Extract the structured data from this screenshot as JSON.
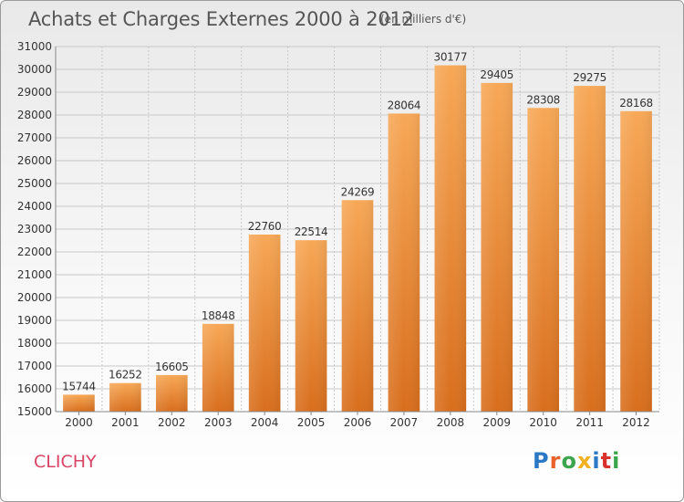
{
  "header": {
    "title": "Achats et Charges Externes 2000 à 2012",
    "unit": "(en milliers d'€)"
  },
  "footer": {
    "city": "CLICHY",
    "logo_text": "Proxiti",
    "logo_colors": [
      "#2b78c6",
      "#e8622a",
      "#3aa54a",
      "#f2b01e",
      "#2b78c6",
      "#d9322e",
      "#3aa54a"
    ]
  },
  "chart_data": {
    "type": "bar",
    "title": "Achats et Charges Externes 2000 à 2012",
    "subtitle": "(en milliers d'€)",
    "xlabel": "",
    "ylabel": "",
    "categories": [
      "2000",
      "2001",
      "2002",
      "2003",
      "2004",
      "2005",
      "2006",
      "2007",
      "2008",
      "2009",
      "2010",
      "2011",
      "2012"
    ],
    "values": [
      15744,
      16252,
      16605,
      18848,
      22760,
      22514,
      24269,
      28064,
      30177,
      29405,
      28308,
      29275,
      28168
    ],
    "ylim": [
      15000,
      31000
    ],
    "yticks": [
      15000,
      16000,
      17000,
      18000,
      19000,
      20000,
      21000,
      22000,
      23000,
      24000,
      25000,
      26000,
      27000,
      28000,
      29000,
      30000,
      31000
    ],
    "grid": true,
    "data_labels": true,
    "bar_color_top": "#f7a857",
    "bar_color_bottom": "#d86e1d",
    "legend": "none"
  }
}
